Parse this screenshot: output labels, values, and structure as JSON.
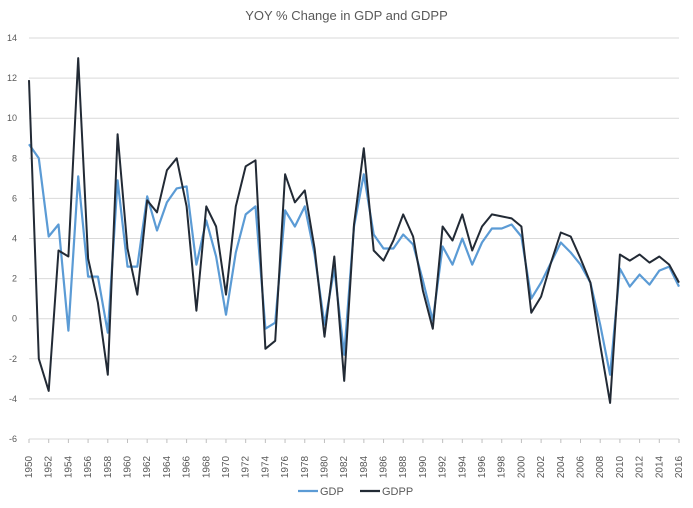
{
  "chart_data": {
    "type": "line",
    "title": "YOY % Change in GDP and GDPP",
    "xlabel": "",
    "ylabel": "",
    "ylim": [
      -6,
      14
    ],
    "yticks": [
      -6,
      -4,
      -2,
      0,
      2,
      4,
      6,
      8,
      10,
      12,
      14
    ],
    "xticks": [
      1950,
      1952,
      1954,
      1956,
      1958,
      1960,
      1962,
      1964,
      1966,
      1968,
      1970,
      1972,
      1974,
      1976,
      1978,
      1980,
      1982,
      1984,
      1986,
      1988,
      1990,
      1992,
      1994,
      1996,
      1998,
      2000,
      2002,
      2004,
      2006,
      2008,
      2010,
      2012,
      2014,
      2016
    ],
    "xlim": [
      1950,
      2016
    ],
    "grid": true,
    "legend_position": "bottom",
    "x": [
      1950,
      1951,
      1952,
      1953,
      1954,
      1955,
      1956,
      1957,
      1958,
      1959,
      1960,
      1961,
      1962,
      1963,
      1964,
      1965,
      1966,
      1967,
      1968,
      1969,
      1970,
      1971,
      1972,
      1973,
      1974,
      1975,
      1976,
      1977,
      1978,
      1979,
      1980,
      1981,
      1982,
      1983,
      1984,
      1985,
      1986,
      1987,
      1988,
      1989,
      1990,
      1991,
      1992,
      1993,
      1994,
      1995,
      1996,
      1997,
      1998,
      1999,
      2000,
      2001,
      2002,
      2003,
      2004,
      2005,
      2006,
      2007,
      2008,
      2009,
      2010,
      2011,
      2012,
      2013,
      2014,
      2015,
      2016
    ],
    "series": [
      {
        "name": "GDP",
        "color": "#5b9bd5",
        "values": [
          8.7,
          8.0,
          4.1,
          4.7,
          -0.6,
          7.1,
          2.1,
          2.1,
          -0.7,
          6.9,
          2.6,
          2.6,
          6.1,
          4.4,
          5.8,
          6.5,
          6.6,
          2.7,
          4.9,
          3.1,
          0.2,
          3.3,
          5.2,
          5.6,
          -0.5,
          -0.2,
          5.4,
          4.6,
          5.6,
          3.2,
          -0.3,
          2.5,
          -1.8,
          4.6,
          7.2,
          4.2,
          3.5,
          3.5,
          4.2,
          3.7,
          1.9,
          -0.1,
          3.6,
          2.7,
          4.0,
          2.7,
          3.8,
          4.5,
          4.5,
          4.7,
          4.1,
          1.0,
          1.8,
          2.8,
          3.8,
          3.3,
          2.7,
          1.8,
          -0.3,
          -2.8,
          2.5,
          1.6,
          2.2,
          1.7,
          2.4,
          2.6,
          1.6
        ]
      },
      {
        "name": "GDPP",
        "color": "#222a35",
        "values": [
          11.9,
          -2.0,
          -3.6,
          3.4,
          3.1,
          13.0,
          3.0,
          0.8,
          -2.8,
          9.2,
          3.5,
          1.2,
          5.9,
          5.3,
          7.4,
          8.0,
          5.6,
          0.4,
          5.6,
          4.6,
          1.2,
          5.6,
          7.6,
          7.9,
          -1.5,
          -1.1,
          7.2,
          5.8,
          6.4,
          3.5,
          -0.9,
          3.1,
          -3.1,
          4.7,
          8.5,
          3.4,
          2.9,
          3.9,
          5.2,
          4.1,
          1.4,
          -0.5,
          4.6,
          3.9,
          5.2,
          3.4,
          4.6,
          5.2,
          5.1,
          5.0,
          4.6,
          0.3,
          1.1,
          2.8,
          4.3,
          4.1,
          3.0,
          1.8,
          -1.3,
          -4.2,
          3.2,
          2.9,
          3.2,
          2.8,
          3.1,
          2.7,
          1.8
        ]
      }
    ]
  }
}
